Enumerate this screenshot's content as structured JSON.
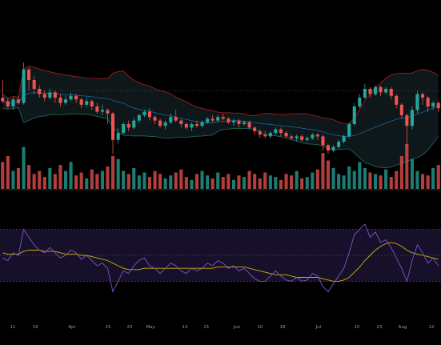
{
  "chart_data": {
    "type": "candlestick",
    "title": "",
    "colors": {
      "up": "#26a69a",
      "down": "#ef5350",
      "band": "#b71c1c",
      "band_lower": "#1f6b5e",
      "basis": "#1e88e5",
      "rsi": "#7e57c2",
      "rsi_ma": "#d4b106",
      "rsi_bg": "#16102a",
      "grid": "#2a2a2a",
      "divider": "#2e2e2e"
    },
    "price_pane": {
      "ylim": [
        0,
        100
      ],
      "reference_line": 54,
      "candles": [
        [
          50,
          48,
          60,
          47
        ],
        [
          48,
          45,
          50,
          44
        ],
        [
          45,
          49,
          50,
          43
        ],
        [
          49,
          47,
          51,
          46
        ],
        [
          47,
          66,
          70,
          46
        ],
        [
          66,
          60,
          67,
          54
        ],
        [
          60,
          55,
          62,
          52
        ],
        [
          55,
          52,
          57,
          50
        ],
        [
          52,
          50,
          54,
          48
        ],
        [
          50,
          53,
          55,
          49
        ],
        [
          53,
          50,
          54,
          47
        ],
        [
          50,
          47,
          52,
          45
        ],
        [
          47,
          49,
          51,
          46
        ],
        [
          49,
          51,
          53,
          48
        ],
        [
          51,
          49,
          52,
          47
        ],
        [
          49,
          46,
          50,
          44
        ],
        [
          46,
          48,
          50,
          45
        ],
        [
          48,
          45,
          49,
          43
        ],
        [
          45,
          42,
          47,
          41
        ],
        [
          42,
          43,
          46,
          40
        ],
        [
          43,
          41,
          44,
          35
        ],
        [
          41,
          26,
          42,
          18
        ],
        [
          26,
          30,
          33,
          24
        ],
        [
          30,
          35,
          36,
          29
        ],
        [
          35,
          33,
          37,
          31
        ],
        [
          33,
          37,
          39,
          32
        ],
        [
          37,
          40,
          41,
          36
        ],
        [
          40,
          42,
          43,
          39
        ],
        [
          42,
          39,
          44,
          37
        ],
        [
          39,
          37,
          40,
          35
        ],
        [
          37,
          34,
          38,
          33
        ],
        [
          34,
          36,
          37,
          32
        ],
        [
          36,
          39,
          41,
          35
        ],
        [
          39,
          37,
          43,
          36
        ],
        [
          37,
          35,
          38,
          33
        ],
        [
          35,
          33,
          36,
          32
        ],
        [
          33,
          35,
          36,
          31
        ],
        [
          35,
          34,
          37,
          33
        ],
        [
          34,
          36,
          37,
          33
        ],
        [
          36,
          38,
          39,
          35
        ],
        [
          38,
          37,
          40,
          36
        ],
        [
          37,
          39,
          40,
          36
        ],
        [
          39,
          38,
          41,
          37
        ],
        [
          38,
          36,
          39,
          35
        ],
        [
          36,
          37,
          38,
          34
        ],
        [
          37,
          35,
          38,
          33
        ],
        [
          35,
          36,
          37,
          34
        ],
        [
          36,
          33,
          37,
          32
        ],
        [
          33,
          31,
          34,
          29
        ],
        [
          31,
          29,
          32,
          27
        ],
        [
          29,
          28,
          31,
          27
        ],
        [
          28,
          30,
          31,
          27
        ],
        [
          30,
          32,
          33,
          29
        ],
        [
          32,
          30,
          33,
          28
        ],
        [
          30,
          28,
          31,
          27
        ],
        [
          28,
          27,
          29,
          26
        ],
        [
          27,
          28,
          29,
          25
        ],
        [
          28,
          26,
          29,
          25
        ],
        [
          26,
          27,
          28,
          25
        ],
        [
          27,
          29,
          30,
          26
        ],
        [
          29,
          28,
          30,
          26
        ],
        [
          28,
          23,
          29,
          20
        ],
        [
          23,
          20,
          24,
          18
        ],
        [
          20,
          22,
          23,
          19
        ],
        [
          22,
          25,
          26,
          21
        ],
        [
          25,
          28,
          29,
          24
        ],
        [
          28,
          35,
          36,
          27
        ],
        [
          35,
          45,
          47,
          34
        ],
        [
          45,
          50,
          52,
          44
        ],
        [
          50,
          55,
          58,
          49
        ],
        [
          55,
          52,
          56,
          50
        ],
        [
          52,
          56,
          57,
          51
        ],
        [
          56,
          53,
          57,
          51
        ],
        [
          53,
          55,
          56,
          52
        ],
        [
          55,
          51,
          56,
          49
        ],
        [
          51,
          46,
          52,
          44
        ],
        [
          46,
          40,
          47,
          38
        ],
        [
          40,
          34,
          41,
          22
        ],
        [
          34,
          43,
          45,
          32
        ],
        [
          43,
          52,
          54,
          41
        ],
        [
          52,
          50,
          53,
          46
        ],
        [
          50,
          45,
          51,
          42
        ],
        [
          45,
          47,
          48,
          43
        ],
        [
          47,
          44,
          48,
          42
        ]
      ]
    },
    "volume": [
      18,
      22,
      12,
      14,
      28,
      16,
      10,
      12,
      8,
      14,
      10,
      16,
      12,
      18,
      9,
      11,
      7,
      13,
      10,
      12,
      15,
      22,
      20,
      12,
      10,
      14,
      9,
      11,
      8,
      12,
      10,
      7,
      9,
      11,
      13,
      8,
      6,
      10,
      12,
      9,
      7,
      11,
      8,
      10,
      6,
      9,
      8,
      12,
      10,
      7,
      11,
      9,
      8,
      6,
      10,
      9,
      12,
      7,
      8,
      11,
      13,
      24,
      19,
      14,
      10,
      9,
      15,
      12,
      18,
      14,
      11,
      10,
      9,
      13,
      8,
      12,
      22,
      30,
      20,
      12,
      10,
      9,
      14,
      16
    ],
    "rsi_pane": {
      "ylim": [
        0,
        100
      ],
      "levels": [
        70,
        50,
        30
      ],
      "x_labels": [
        "11",
        "19",
        "Apr",
        "15",
        "23",
        "May",
        "13",
        "21",
        "Jun",
        "10",
        "18",
        "Jul",
        "15",
        "23",
        "Aug",
        "12"
      ],
      "rsi": [
        48,
        46,
        52,
        50,
        70,
        64,
        58,
        54,
        52,
        56,
        52,
        48,
        50,
        54,
        52,
        47,
        50,
        46,
        42,
        44,
        40,
        22,
        30,
        38,
        36,
        42,
        46,
        48,
        42,
        40,
        36,
        40,
        44,
        42,
        38,
        36,
        40,
        38,
        40,
        44,
        42,
        46,
        44,
        40,
        42,
        38,
        40,
        36,
        32,
        30,
        30,
        34,
        38,
        34,
        31,
        30,
        33,
        30,
        31,
        36,
        34,
        26,
        22,
        28,
        34,
        40,
        52,
        66,
        70,
        74,
        64,
        68,
        60,
        62,
        56,
        48,
        40,
        30,
        46,
        58,
        52,
        44,
        48,
        42
      ],
      "rsi_ma": [
        52,
        51,
        51,
        51,
        53,
        54,
        54,
        54,
        53,
        53,
        53,
        52,
        51,
        51,
        51,
        50,
        50,
        49,
        48,
        47,
        46,
        44,
        42,
        40,
        39,
        39,
        39,
        40,
        40,
        40,
        40,
        40,
        40,
        40,
        40,
        40,
        40,
        40,
        40,
        40,
        40,
        41,
        41,
        41,
        41,
        41,
        41,
        40,
        39,
        38,
        37,
        36,
        35,
        35,
        35,
        34,
        33,
        33,
        33,
        33,
        33,
        32,
        31,
        30,
        30,
        31,
        33,
        37,
        41,
        46,
        50,
        54,
        57,
        59,
        60,
        59,
        57,
        54,
        52,
        51,
        50,
        49,
        48,
        47
      ]
    }
  }
}
